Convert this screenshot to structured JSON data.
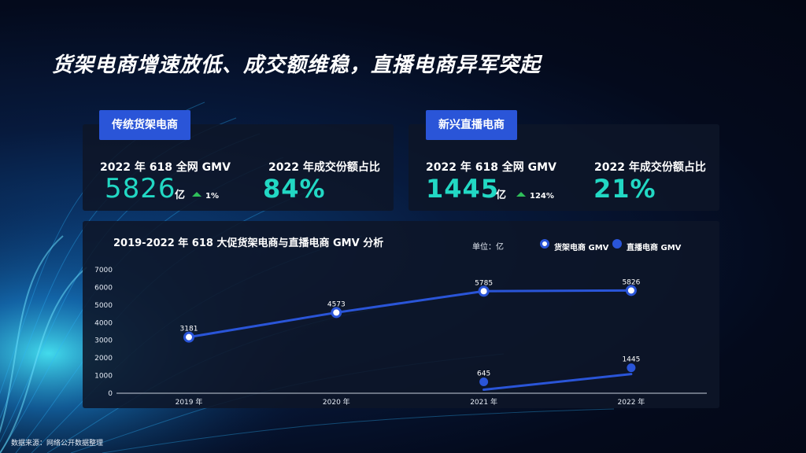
{
  "title": "货架电商增速放低、成交额维稳，直播电商异军突起",
  "traditional": {
    "tag": "传统货架电商",
    "gmv_label": "2022 年 618 全网 GMV",
    "gmv_value": "5826",
    "gmv_unit": "亿",
    "growth": "1%",
    "share_label": "2022 年成交份额占比",
    "share_value": "84%"
  },
  "live": {
    "tag": "新兴直播电商",
    "gmv_label": "2022 年 618 全网 GMV",
    "gmv_value": "1445",
    "gmv_unit": "亿",
    "growth": "124%",
    "share_label": "2022 年成交份额占比",
    "share_value": "21%"
  },
  "chart_header": {
    "unit_label": "单位：亿"
  },
  "chart_data": {
    "type": "line",
    "title": "2019-2022 年 618 大促货架电商与直播电商 GMV 分析",
    "categories": [
      "2019 年",
      "2020 年",
      "2021 年",
      "2022 年"
    ],
    "ylim": [
      0,
      7000
    ],
    "yticks": [
      0,
      1000,
      2000,
      3000,
      4000,
      5000,
      6000,
      7000
    ],
    "series": [
      {
        "name": "货架电商 GMV",
        "values": [
          3181,
          4573,
          5785,
          5826
        ],
        "labels": [
          "3181",
          "4573",
          "5785",
          "5826"
        ],
        "marker": "outline"
      },
      {
        "name": "直播电商 GMV",
        "values": [
          null,
          null,
          645,
          1445
        ],
        "labels": [
          null,
          null,
          "645",
          "1445"
        ],
        "marker": "solid"
      }
    ]
  },
  "source": "数据来源：网络公开数据整理",
  "colors": {
    "accent": "#22d8c4",
    "brand_blue": "#2a55d8",
    "growth_green": "#2fbf5a"
  }
}
